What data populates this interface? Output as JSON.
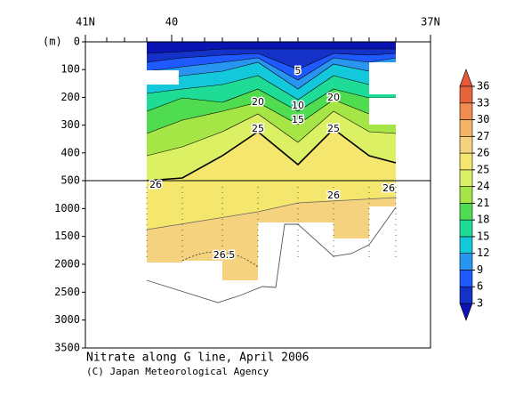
{
  "chart_data": {
    "type": "contour",
    "title": "Nitrate along G line, April 2006",
    "credit": "(C) Japan Meteorological Agency",
    "y_label": "(m)",
    "xlim": [
      41,
      37
    ],
    "xticks": [
      {
        "value": 41,
        "label": "41N"
      },
      40,
      {
        "value": 37,
        "label": "37N"
      }
    ],
    "ylim": [
      0,
      3500
    ],
    "y_break": 500,
    "yticks": [
      0,
      100,
      200,
      300,
      400,
      500,
      1000,
      1500,
      2000,
      2500,
      3000,
      3500
    ],
    "contour_labels": [
      5,
      10,
      15,
      20,
      20,
      25,
      25,
      26,
      26,
      26,
      26.5
    ],
    "colorbar": {
      "levels": [
        3,
        6,
        9,
        12,
        15,
        18,
        21,
        24,
        25,
        26,
        27,
        30,
        33,
        36
      ],
      "colors": [
        "#1432c8",
        "#1e5aff",
        "#2896f0",
        "#14c8dc",
        "#1edc96",
        "#50dc50",
        "#a5e646",
        "#dcf064",
        "#f5e66e",
        "#f5d27d",
        "#f5b464",
        "#f08c50",
        "#e6643c"
      ],
      "under_color": "#0a14b4",
      "over_color": "#e65a3c"
    }
  }
}
